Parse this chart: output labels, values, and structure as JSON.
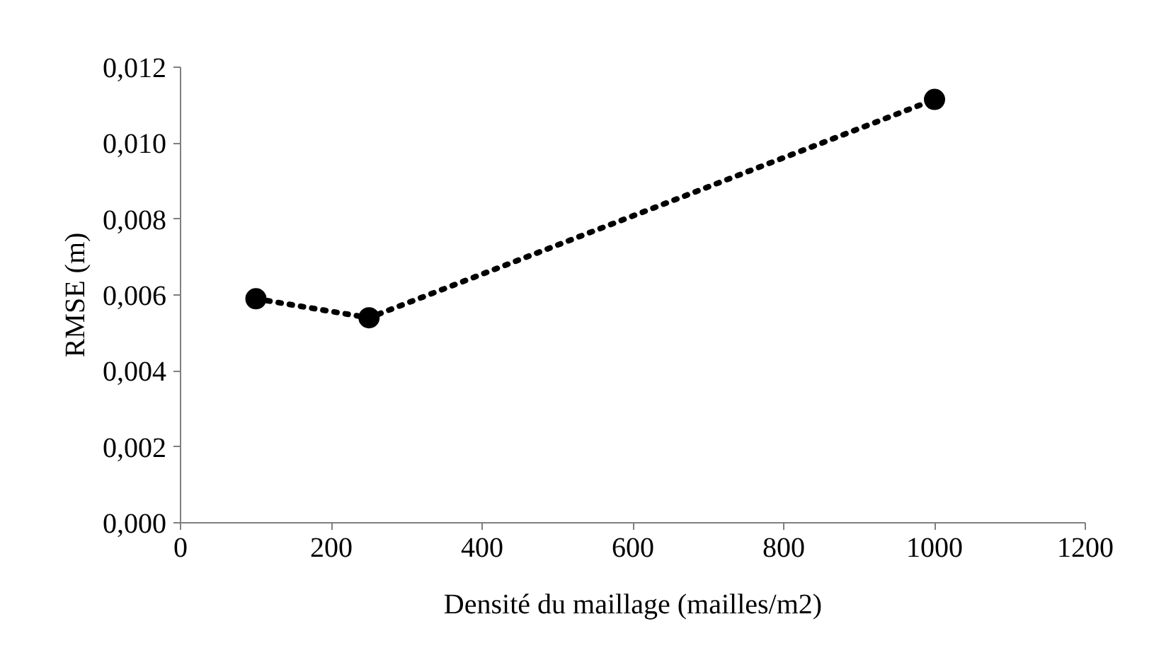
{
  "chart_data": {
    "type": "line",
    "xlabel": "Densité du maillage (mailles/m2)",
    "ylabel": "RMSE (m)",
    "x": [
      100,
      250,
      1000
    ],
    "series": [
      {
        "color": "#000000",
        "values": [
          0.0059,
          0.0054,
          0.01115
        ]
      }
    ],
    "xlim": [
      0,
      1200
    ],
    "xticks": [
      0,
      200,
      400,
      600,
      800,
      1000,
      1200
    ],
    "ylim": [
      0,
      0.012
    ],
    "yticks": [
      {
        "value": 0,
        "label": "0,000"
      },
      {
        "value": 0.002,
        "label": "0,002"
      },
      {
        "value": 0.004,
        "label": "0,004"
      },
      {
        "value": 0.006,
        "label": "0,006"
      },
      {
        "value": 0.008,
        "label": "0,008"
      },
      {
        "value": 0.01,
        "label": "0,010"
      },
      {
        "value": 0.012,
        "label": "0,012"
      }
    ],
    "marker": "circle",
    "line_style": "dotted"
  }
}
